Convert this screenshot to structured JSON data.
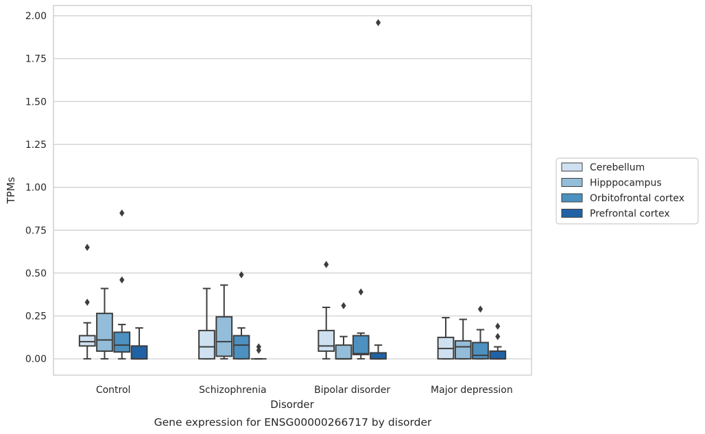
{
  "chart_data": {
    "type": "box",
    "title": "",
    "caption": "Gene expression for ENSG00000266717 by disorder",
    "xlabel": "Disorder",
    "ylabel": "TPMs",
    "ylim": [
      -0.095,
      2.06
    ],
    "yticks": [
      "0.00",
      "0.25",
      "0.50",
      "0.75",
      "1.00",
      "1.25",
      "1.50",
      "1.75",
      "2.00"
    ],
    "categories": [
      "Control",
      "Schizophrenia",
      "Bipolar disorder",
      "Major depression"
    ],
    "grid": true,
    "legend_position": "right",
    "series": [
      {
        "name": "Cerebellum",
        "color": "#cfe1f0",
        "boxes": [
          {
            "whisker_low": 0.0,
            "q1": 0.075,
            "median": 0.1,
            "q3": 0.135,
            "whisker_high": 0.21,
            "outliers": [
              0.33,
              0.65
            ]
          },
          {
            "whisker_low": 0.0,
            "q1": 0.0,
            "median": 0.07,
            "q3": 0.165,
            "whisker_high": 0.41,
            "outliers": []
          },
          {
            "whisker_low": 0.0,
            "q1": 0.045,
            "median": 0.075,
            "q3": 0.165,
            "whisker_high": 0.3,
            "outliers": [
              0.55
            ]
          },
          {
            "whisker_low": 0.0,
            "q1": 0.0,
            "median": 0.06,
            "q3": 0.125,
            "whisker_high": 0.24,
            "outliers": []
          }
        ]
      },
      {
        "name": "Hipppocampus",
        "color": "#93bdd8",
        "boxes": [
          {
            "whisker_low": 0.0,
            "q1": 0.045,
            "median": 0.11,
            "q3": 0.265,
            "whisker_high": 0.41,
            "outliers": []
          },
          {
            "whisker_low": 0.0,
            "q1": 0.015,
            "median": 0.1,
            "q3": 0.245,
            "whisker_high": 0.43,
            "outliers": []
          },
          {
            "whisker_low": 0.0,
            "q1": 0.0,
            "median": 0.0,
            "q3": 0.08,
            "whisker_high": 0.13,
            "outliers": [
              0.31
            ]
          },
          {
            "whisker_low": 0.0,
            "q1": 0.0,
            "median": 0.07,
            "q3": 0.105,
            "whisker_high": 0.23,
            "outliers": []
          }
        ]
      },
      {
        "name": "Orbitofrontal cortex",
        "color": "#4c91c0",
        "boxes": [
          {
            "whisker_low": 0.0,
            "q1": 0.04,
            "median": 0.08,
            "q3": 0.155,
            "whisker_high": 0.2,
            "outliers": [
              0.46,
              0.85
            ]
          },
          {
            "whisker_low": 0.0,
            "q1": 0.0,
            "median": 0.08,
            "q3": 0.135,
            "whisker_high": 0.18,
            "outliers": [
              0.49
            ]
          },
          {
            "whisker_low": 0.0,
            "q1": 0.025,
            "median": 0.03,
            "q3": 0.135,
            "whisker_high": 0.15,
            "outliers": [
              0.39
            ]
          },
          {
            "whisker_low": 0.0,
            "q1": 0.0,
            "median": 0.02,
            "q3": 0.095,
            "whisker_high": 0.17,
            "outliers": [
              0.29
            ]
          }
        ]
      },
      {
        "name": "Prefrontal cortex",
        "color": "#2162a6",
        "boxes": [
          {
            "whisker_low": 0.0,
            "q1": 0.0,
            "median": 0.0,
            "q3": 0.075,
            "whisker_high": 0.18,
            "outliers": []
          },
          {
            "whisker_low": 0.0,
            "q1": 0.0,
            "median": 0.0,
            "q3": 0.0,
            "whisker_high": 0.0,
            "outliers": [
              0.05,
              0.07
            ]
          },
          {
            "whisker_low": 0.0,
            "q1": 0.0,
            "median": 0.0,
            "q3": 0.035,
            "whisker_high": 0.08,
            "outliers": [
              1.96
            ]
          },
          {
            "whisker_low": 0.0,
            "q1": 0.0,
            "median": 0.0,
            "q3": 0.045,
            "whisker_high": 0.07,
            "outliers": [
              0.13,
              0.19
            ]
          }
        ]
      }
    ]
  }
}
